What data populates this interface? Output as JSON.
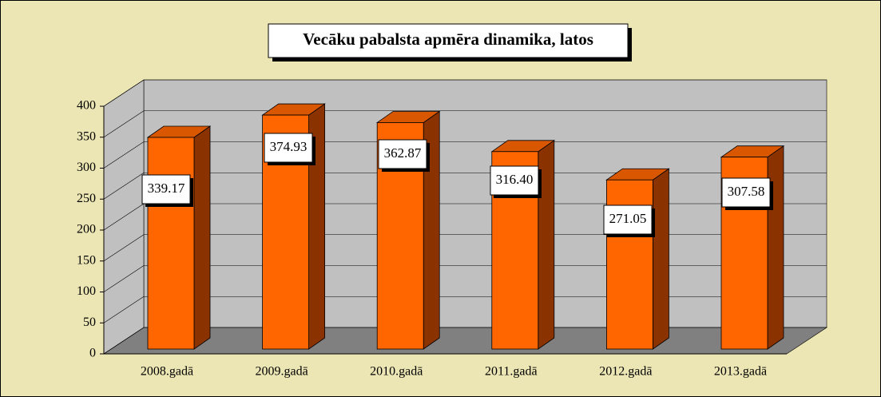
{
  "chart_data": {
    "type": "bar3d",
    "title": "Vecāku pabalsta apmēra dinamika, latos",
    "categories": [
      "2008.gadā",
      "2009.gadā",
      "2010.gadā",
      "2011.gadā",
      "2012.gadā",
      "2013.gadā"
    ],
    "values": [
      339.17,
      374.93,
      362.87,
      316.4,
      271.05,
      307.58
    ],
    "value_labels": [
      "339.17",
      "374.93",
      "362.87",
      "316.40",
      "271.05",
      "307.58"
    ],
    "color": "#ff6600",
    "ylim": [
      0,
      400
    ],
    "yticks": [
      0,
      50,
      100,
      150,
      200,
      250,
      300,
      350,
      400
    ],
    "grid": true
  }
}
